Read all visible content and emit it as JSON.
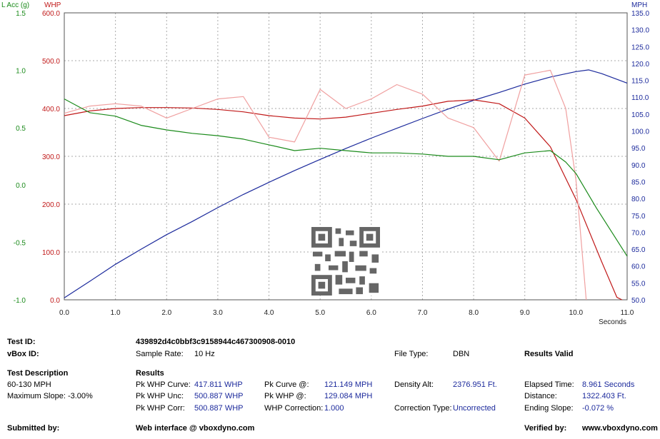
{
  "chart_data": {
    "type": "line",
    "x_axis": {
      "label": "Seconds",
      "range": [
        0,
        11
      ],
      "ticks": [
        "0.0",
        "1.0",
        "2.0",
        "3.0",
        "4.0",
        "5.0",
        "6.0",
        "7.0",
        "8.0",
        "9.0",
        "10.0",
        "11.0"
      ]
    },
    "axes": {
      "lacc": {
        "label": "L Acc (g)",
        "color": "#1a8a1a",
        "range": [
          -1.0,
          1.5
        ],
        "ticks": [
          "-1.0",
          "-0.5",
          "0.0",
          "0.5",
          "1.0",
          "1.5"
        ]
      },
      "whp": {
        "label": "WHP",
        "color": "#c01818",
        "range": [
          0,
          600
        ],
        "ticks": [
          "0.0",
          "100.0",
          "200.0",
          "300.0",
          "400.0",
          "500.0",
          "600.0"
        ]
      },
      "mph": {
        "label": "MPH",
        "color": "#1c2a9c",
        "range": [
          50,
          135
        ],
        "ticks": [
          "50.0",
          "55.0",
          "60.0",
          "65.0",
          "70.0",
          "75.0",
          "80.0",
          "85.0",
          "90.0",
          "95.0",
          "100.0",
          "105.0",
          "110.0",
          "115.0",
          "120.0",
          "125.0",
          "130.0",
          "135.0"
        ]
      }
    },
    "grid": true,
    "series": [
      {
        "axis": "mph",
        "color": "#1c2a9c",
        "points": [
          [
            0,
            50.6
          ],
          [
            0.5,
            55.5
          ],
          [
            1,
            60.5
          ],
          [
            1.5,
            65
          ],
          [
            2,
            69.3
          ],
          [
            2.5,
            73.2
          ],
          [
            3,
            77.3
          ],
          [
            3.5,
            81.2
          ],
          [
            4,
            84.8
          ],
          [
            4.5,
            88.3
          ],
          [
            5,
            91.6
          ],
          [
            5.5,
            94.8
          ],
          [
            6,
            97.9
          ],
          [
            6.5,
            100.8
          ],
          [
            7,
            103.7
          ],
          [
            7.5,
            106.5
          ],
          [
            8,
            109.1
          ],
          [
            8.5,
            111.4
          ],
          [
            9,
            113.9
          ],
          [
            9.5,
            116
          ],
          [
            10,
            117.6
          ],
          [
            10.25,
            118.1
          ],
          [
            10.5,
            117
          ],
          [
            11,
            114.2
          ]
        ]
      },
      {
        "axis": "whp",
        "color": "#c01818",
        "points": [
          [
            0,
            385
          ],
          [
            0.5,
            395
          ],
          [
            1,
            400
          ],
          [
            1.5,
            402
          ],
          [
            2,
            402
          ],
          [
            2.5,
            401
          ],
          [
            3,
            398
          ],
          [
            3.5,
            393
          ],
          [
            4,
            385
          ],
          [
            4.5,
            380
          ],
          [
            5,
            378
          ],
          [
            5.5,
            382
          ],
          [
            6,
            390
          ],
          [
            6.5,
            398
          ],
          [
            7,
            405
          ],
          [
            7.5,
            415
          ],
          [
            8,
            418
          ],
          [
            8.5,
            410
          ],
          [
            9,
            380
          ],
          [
            9.5,
            320
          ],
          [
            10,
            210
          ],
          [
            10.5,
            80
          ],
          [
            10.8,
            5
          ],
          [
            10.9,
            0
          ]
        ]
      },
      {
        "axis": "whp",
        "color": "#f0a0a0",
        "points": [
          [
            0,
            390
          ],
          [
            0.5,
            405
          ],
          [
            1,
            410
          ],
          [
            1.5,
            405
          ],
          [
            2,
            380
          ],
          [
            2.5,
            400
          ],
          [
            3,
            420
          ],
          [
            3.5,
            425
          ],
          [
            4,
            340
          ],
          [
            4.5,
            330
          ],
          [
            5,
            440
          ],
          [
            5.5,
            400
          ],
          [
            6,
            420
          ],
          [
            6.5,
            450
          ],
          [
            7,
            430
          ],
          [
            7.5,
            380
          ],
          [
            8,
            360
          ],
          [
            8.5,
            290
          ],
          [
            9,
            470
          ],
          [
            9.5,
            480
          ],
          [
            9.8,
            400
          ],
          [
            10,
            250
          ],
          [
            10.2,
            0
          ]
        ]
      },
      {
        "axis": "lacc",
        "color": "#1a8a1a",
        "points": [
          [
            0,
            0.75
          ],
          [
            0.5,
            0.63
          ],
          [
            1,
            0.6
          ],
          [
            1.5,
            0.52
          ],
          [
            2,
            0.48
          ],
          [
            2.5,
            0.45
          ],
          [
            3,
            0.43
          ],
          [
            3.5,
            0.4
          ],
          [
            4,
            0.35
          ],
          [
            4.5,
            0.3
          ],
          [
            5,
            0.32
          ],
          [
            5.5,
            0.3
          ],
          [
            6,
            0.28
          ],
          [
            6.5,
            0.28
          ],
          [
            7,
            0.27
          ],
          [
            7.5,
            0.25
          ],
          [
            8,
            0.25
          ],
          [
            8.5,
            0.22
          ],
          [
            9,
            0.28
          ],
          [
            9.5,
            0.3
          ],
          [
            9.8,
            0.2
          ],
          [
            10,
            0.1
          ],
          [
            10.4,
            -0.2
          ],
          [
            10.8,
            -0.48
          ],
          [
            11,
            -0.62
          ]
        ]
      }
    ]
  },
  "info": {
    "test_id_label": "Test ID:",
    "test_id": "439892d4c0bbf3c9158944c467300908-0010",
    "vbox_id_label": "vBox ID:",
    "sample_rate_label": "Sample Rate:",
    "sample_rate": "10 Hz",
    "file_type_label": "File Type:",
    "file_type": "DBN",
    "results_valid": "Results Valid",
    "test_description_label": "Test Description",
    "test_description": "60-130 MPH",
    "max_slope": "Maximum Slope: -3.00%",
    "results_label": "Results",
    "pk_whp_curve_label": "Pk WHP Curve:",
    "pk_whp_curve": "417.811 WHP",
    "pk_whp_unc_label": "Pk WHP Unc:",
    "pk_whp_unc": "500.887 WHP",
    "pk_whp_corr_label": "Pk WHP Corr:",
    "pk_whp_corr": "500.887 WHP",
    "pk_curve_at_label": "Pk Curve @:",
    "pk_curve_at": "121.149 MPH",
    "pk_whp_at_label": "Pk WHP @:",
    "pk_whp_at": "129.084 MPH",
    "whp_correction_label": "WHP Correction:",
    "whp_correction": "1.000",
    "density_alt_label": "Density Alt:",
    "density_alt": "2376.951 Ft.",
    "correction_type_label": "Correction Type:",
    "correction_type": "Uncorrected",
    "elapsed_time_label": "Elapsed Time:",
    "elapsed_time": "8.961 Seconds",
    "distance_label": "Distance:",
    "distance": "1322.403 Ft.",
    "ending_slope_label": "Ending Slope:",
    "ending_slope": "-0.072 %",
    "submitted_by_label": "Submitted by:",
    "web_interface": "Web interface @ vboxdyno.com",
    "verified_by_label": "Verified by:",
    "verified_by": "www.vboxdyno.com"
  }
}
